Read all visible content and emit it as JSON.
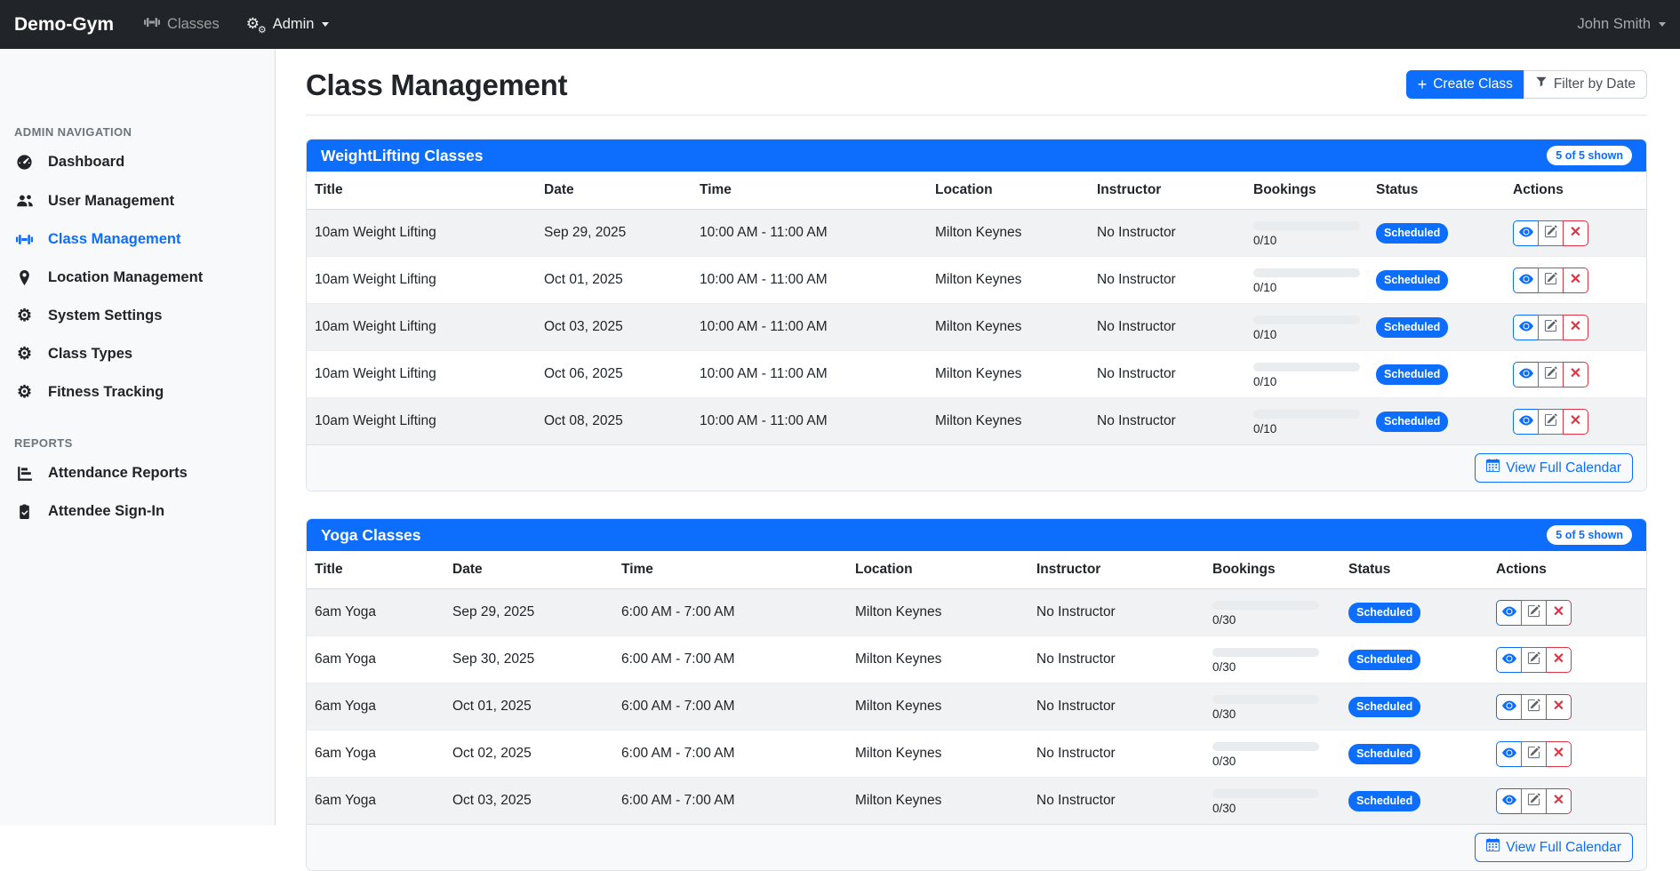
{
  "colors": {
    "primary": "#0d6efd",
    "navbar_bg": "#212529",
    "danger": "#dc3545",
    "muted_text": "#6c757d",
    "card_footer_bg": "#f8f9fa"
  },
  "navbar": {
    "brand": "Demo-Gym",
    "classes_link": "Classes",
    "admin_link": "Admin",
    "user_name": "John Smith"
  },
  "sidebar": {
    "sections": [
      {
        "heading": "ADMIN NAVIGATION",
        "items": [
          {
            "label": "Dashboard",
            "icon": "tachometer-icon",
            "active": false
          },
          {
            "label": "User Management",
            "icon": "users-icon",
            "active": false
          },
          {
            "label": "Class Management",
            "icon": "dumbbell-icon",
            "active": true
          },
          {
            "label": "Location Management",
            "icon": "map-marker-icon",
            "active": false
          },
          {
            "label": "System Settings",
            "icon": "gear-icon",
            "active": false
          },
          {
            "label": "Class Types",
            "icon": "gear-icon",
            "active": false
          },
          {
            "label": "Fitness Tracking",
            "icon": "gear-icon",
            "active": false
          }
        ]
      },
      {
        "heading": "REPORTS",
        "items": [
          {
            "label": "Attendance Reports",
            "icon": "bar-chart-icon",
            "active": false
          },
          {
            "label": "Attendee Sign-In",
            "icon": "clipboard-check-icon",
            "active": false
          }
        ]
      }
    ]
  },
  "page": {
    "title": "Class Management",
    "create_class_label": "Create Class",
    "filter_by_date_label": "Filter by Date"
  },
  "tables": [
    {
      "title": "WeightLifting Classes",
      "badge": "5 of 5 shown",
      "columns": [
        "Title",
        "Date",
        "Time",
        "Location",
        "Instructor",
        "Bookings",
        "Status",
        "Actions"
      ],
      "footer_button": "View Full Calendar",
      "rows": [
        {
          "title": "10am Weight Lifting",
          "date": "Sep 29, 2025",
          "time": "10:00 AM - 11:00 AM",
          "location": "Milton Keynes",
          "instructor": "No Instructor",
          "bookings": "0/10",
          "status": "Scheduled"
        },
        {
          "title": "10am Weight Lifting",
          "date": "Oct 01, 2025",
          "time": "10:00 AM - 11:00 AM",
          "location": "Milton Keynes",
          "instructor": "No Instructor",
          "bookings": "0/10",
          "status": "Scheduled"
        },
        {
          "title": "10am Weight Lifting",
          "date": "Oct 03, 2025",
          "time": "10:00 AM - 11:00 AM",
          "location": "Milton Keynes",
          "instructor": "No Instructor",
          "bookings": "0/10",
          "status": "Scheduled"
        },
        {
          "title": "10am Weight Lifting",
          "date": "Oct 06, 2025",
          "time": "10:00 AM - 11:00 AM",
          "location": "Milton Keynes",
          "instructor": "No Instructor",
          "bookings": "0/10",
          "status": "Scheduled"
        },
        {
          "title": "10am Weight Lifting",
          "date": "Oct 08, 2025",
          "time": "10:00 AM - 11:00 AM",
          "location": "Milton Keynes",
          "instructor": "No Instructor",
          "bookings": "0/10",
          "status": "Scheduled"
        }
      ]
    },
    {
      "title": "Yoga Classes",
      "badge": "5 of 5 shown",
      "columns": [
        "Title",
        "Date",
        "Time",
        "Location",
        "Instructor",
        "Bookings",
        "Status",
        "Actions"
      ],
      "footer_button": "View Full Calendar",
      "rows": [
        {
          "title": "6am Yoga",
          "date": "Sep 29, 2025",
          "time": "6:00 AM - 7:00 AM",
          "location": "Milton Keynes",
          "instructor": "No Instructor",
          "bookings": "0/30",
          "status": "Scheduled"
        },
        {
          "title": "6am Yoga",
          "date": "Sep 30, 2025",
          "time": "6:00 AM - 7:00 AM",
          "location": "Milton Keynes",
          "instructor": "No Instructor",
          "bookings": "0/30",
          "status": "Scheduled"
        },
        {
          "title": "6am Yoga",
          "date": "Oct 01, 2025",
          "time": "6:00 AM - 7:00 AM",
          "location": "Milton Keynes",
          "instructor": "No Instructor",
          "bookings": "0/30",
          "status": "Scheduled"
        },
        {
          "title": "6am Yoga",
          "date": "Oct 02, 2025",
          "time": "6:00 AM - 7:00 AM",
          "location": "Milton Keynes",
          "instructor": "No Instructor",
          "bookings": "0/30",
          "status": "Scheduled"
        },
        {
          "title": "6am Yoga",
          "date": "Oct 03, 2025",
          "time": "6:00 AM - 7:00 AM",
          "location": "Milton Keynes",
          "instructor": "No Instructor",
          "bookings": "0/30",
          "status": "Scheduled"
        }
      ]
    }
  ]
}
